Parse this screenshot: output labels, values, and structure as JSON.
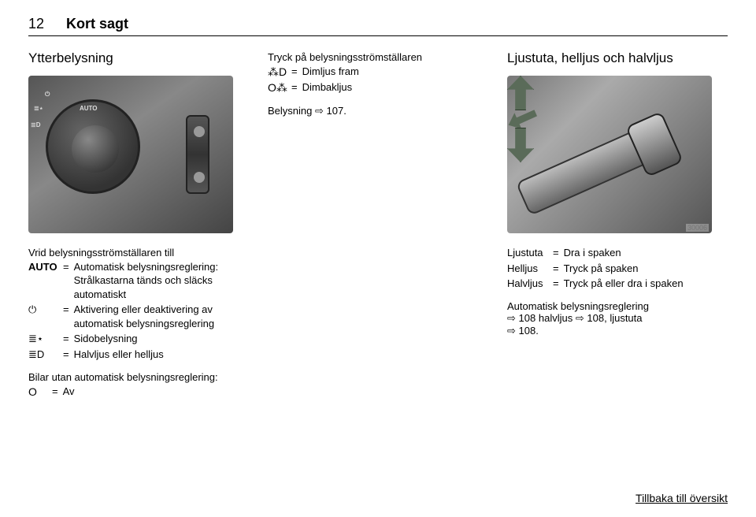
{
  "header": {
    "page_number": "12",
    "section": "Kort sagt"
  },
  "col1": {
    "title": "Ytterbelysning",
    "dial_labels": {
      "auto": "AUTO",
      "off": "⏻",
      "park": "≣⋆",
      "low": "≣D"
    },
    "rotary_intro": "Vrid belysningsströmställaren till",
    "rows": [
      {
        "label": "AUTO",
        "value": "Automatisk belysningsreglering: Strålkastarna tänds och släcks automatiskt"
      },
      {
        "label": "⏻",
        "value": "Aktivering eller deaktivering av automatisk belysningsreglering"
      },
      {
        "label": "≣⋆",
        "value": "Sidobelysning"
      },
      {
        "label": "≣D",
        "value": "Halvljus eller helljus"
      }
    ],
    "no_auto_text": "Bilar utan automatisk belysningsreglering:",
    "off_row": {
      "label": "O",
      "value": "Av"
    }
  },
  "col2": {
    "push_intro": "Tryck på belysningsströmställaren",
    "rows": [
      {
        "label": "⁂D",
        "value": "Dimljus fram"
      },
      {
        "label": "O⁂",
        "value": "Dimbakljus"
      }
    ],
    "belysning_text": "Belysning",
    "belysning_ref": "107.",
    "arrow": "⇨"
  },
  "col3": {
    "title": "Ljustuta, helljus och halvljus",
    "imgnum": "30006",
    "rows": [
      {
        "label": "Ljustuta",
        "value": "Dra i spaken"
      },
      {
        "label": "Helljus",
        "value": "Tryck på spaken"
      },
      {
        "label": "Halvljus",
        "value": "Tryck på eller dra i spaken"
      }
    ],
    "auto_text_1": "Automatisk belysningsreglering",
    "auto_ref_1": "108",
    "auto_text_2": "halvljus",
    "auto_ref_2": "108,",
    "auto_text_3": "ljustuta",
    "auto_ref_3": "108.",
    "arrow": "⇨"
  },
  "footer": {
    "text": "Tillbaka till översikt"
  }
}
